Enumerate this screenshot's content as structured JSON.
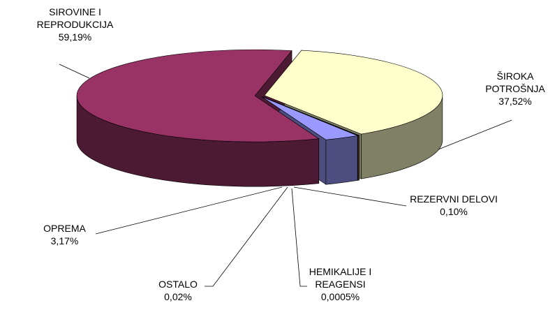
{
  "chart_data": {
    "type": "pie3d",
    "categories": [
      "ŠIROKA POTROŠNJA",
      "REZERVNI DELOVI",
      "HEMIKALIJE I REAGENSI",
      "OSTALO",
      "OPREMA",
      "SIROVINE I REPRODUKCIJA"
    ],
    "values": [
      37.52,
      0.1,
      0.0005,
      0.02,
      3.17,
      59.19
    ],
    "value_labels": [
      "37,52%",
      "0,10%",
      "0,0005%",
      "0,02%",
      "3,17%",
      "59,19%"
    ],
    "colors": [
      "#ffffcc",
      "#ff8080",
      "#0066cc",
      "#ccccff",
      "#9999ff",
      "#993366"
    ]
  }
}
